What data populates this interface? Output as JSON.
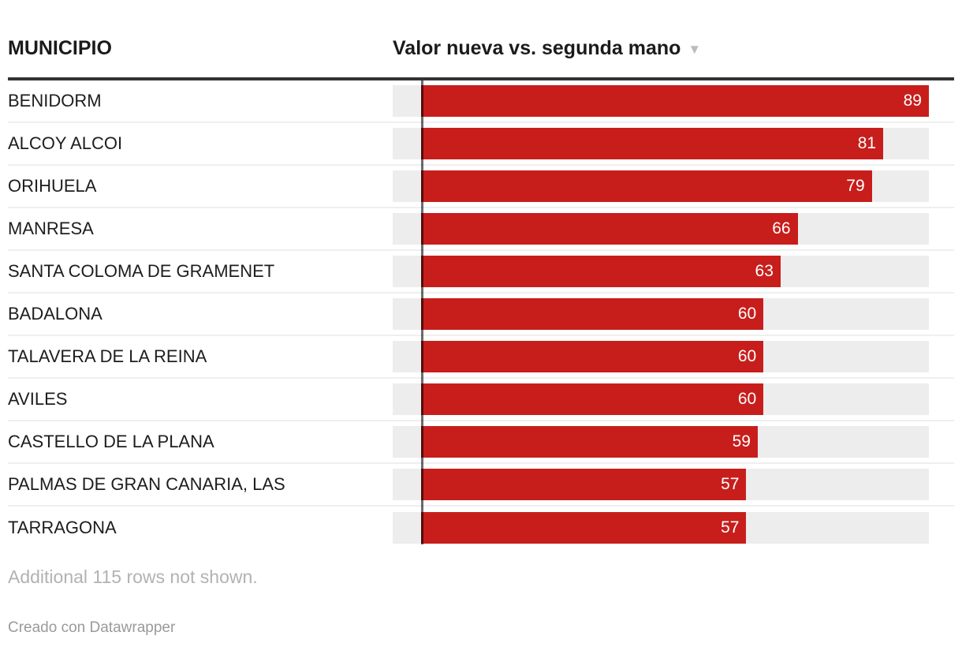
{
  "table": {
    "header": {
      "municipio": "MUNICIPIO",
      "value_col": "Valor nueva vs. segunda mano",
      "sort_icon": "▼"
    }
  },
  "chart_data": {
    "type": "bar",
    "title": "Valor nueva vs. segunda mano",
    "categories": [
      "BENIDORM",
      "ALCOY ALCOI",
      "ORIHUELA",
      "MANRESA",
      "SANTA COLOMA DE GRAMENET",
      "BADALONA",
      "TALAVERA DE LA REINA",
      "AVILES",
      "CASTELLO DE LA PLANA",
      "PALMAS DE GRAN CANARIA, LAS",
      "TARRAGONA"
    ],
    "values": [
      89,
      81,
      79,
      66,
      63,
      60,
      60,
      60,
      59,
      57,
      57
    ],
    "xlabel": "",
    "ylabel": "MUNICIPIO",
    "xlim": [
      -5,
      89
    ],
    "sort": "descending",
    "legend": "none",
    "grid": "off",
    "bar_color": "#c71e1c",
    "track_color": "#ededed",
    "value_label_color": "#ffffff"
  },
  "footer": {
    "note": "Additional 115 rows not shown.",
    "credit": "Creado con Datawrapper"
  }
}
